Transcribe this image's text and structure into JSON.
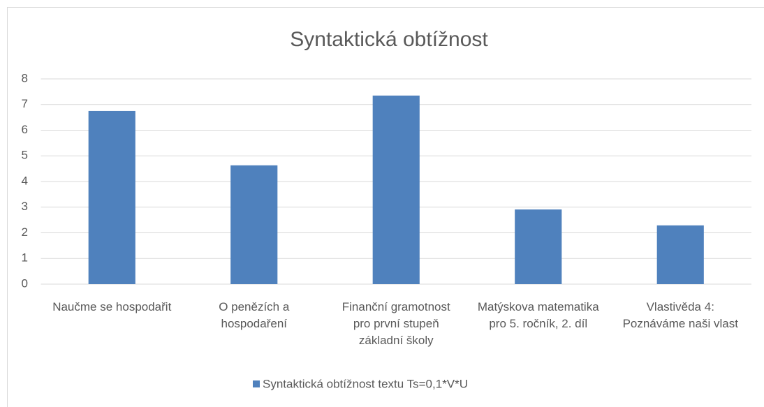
{
  "chart_data": {
    "type": "bar",
    "title": "Syntaktická obtížnost",
    "categories": [
      "Naučme se hospodařit",
      "O penězích a hospodaření",
      "Finanční gramotnost pro první stupeň základní školy",
      "Matýskova matematika pro 5. ročník, 2. díl",
      "Vlastivěda 4: Poznáváme naši vlast"
    ],
    "series": [
      {
        "name": "Syntaktická obtížnost textu Ts=0,1*V*U",
        "color": "#4f81bd",
        "values": [
          6.75,
          4.63,
          7.35,
          2.91,
          2.29
        ]
      }
    ],
    "ylim": [
      0,
      8
    ],
    "yticks": [
      0,
      1,
      2,
      3,
      4,
      5,
      6,
      7,
      8
    ],
    "grid": true,
    "legend": "bottom"
  }
}
